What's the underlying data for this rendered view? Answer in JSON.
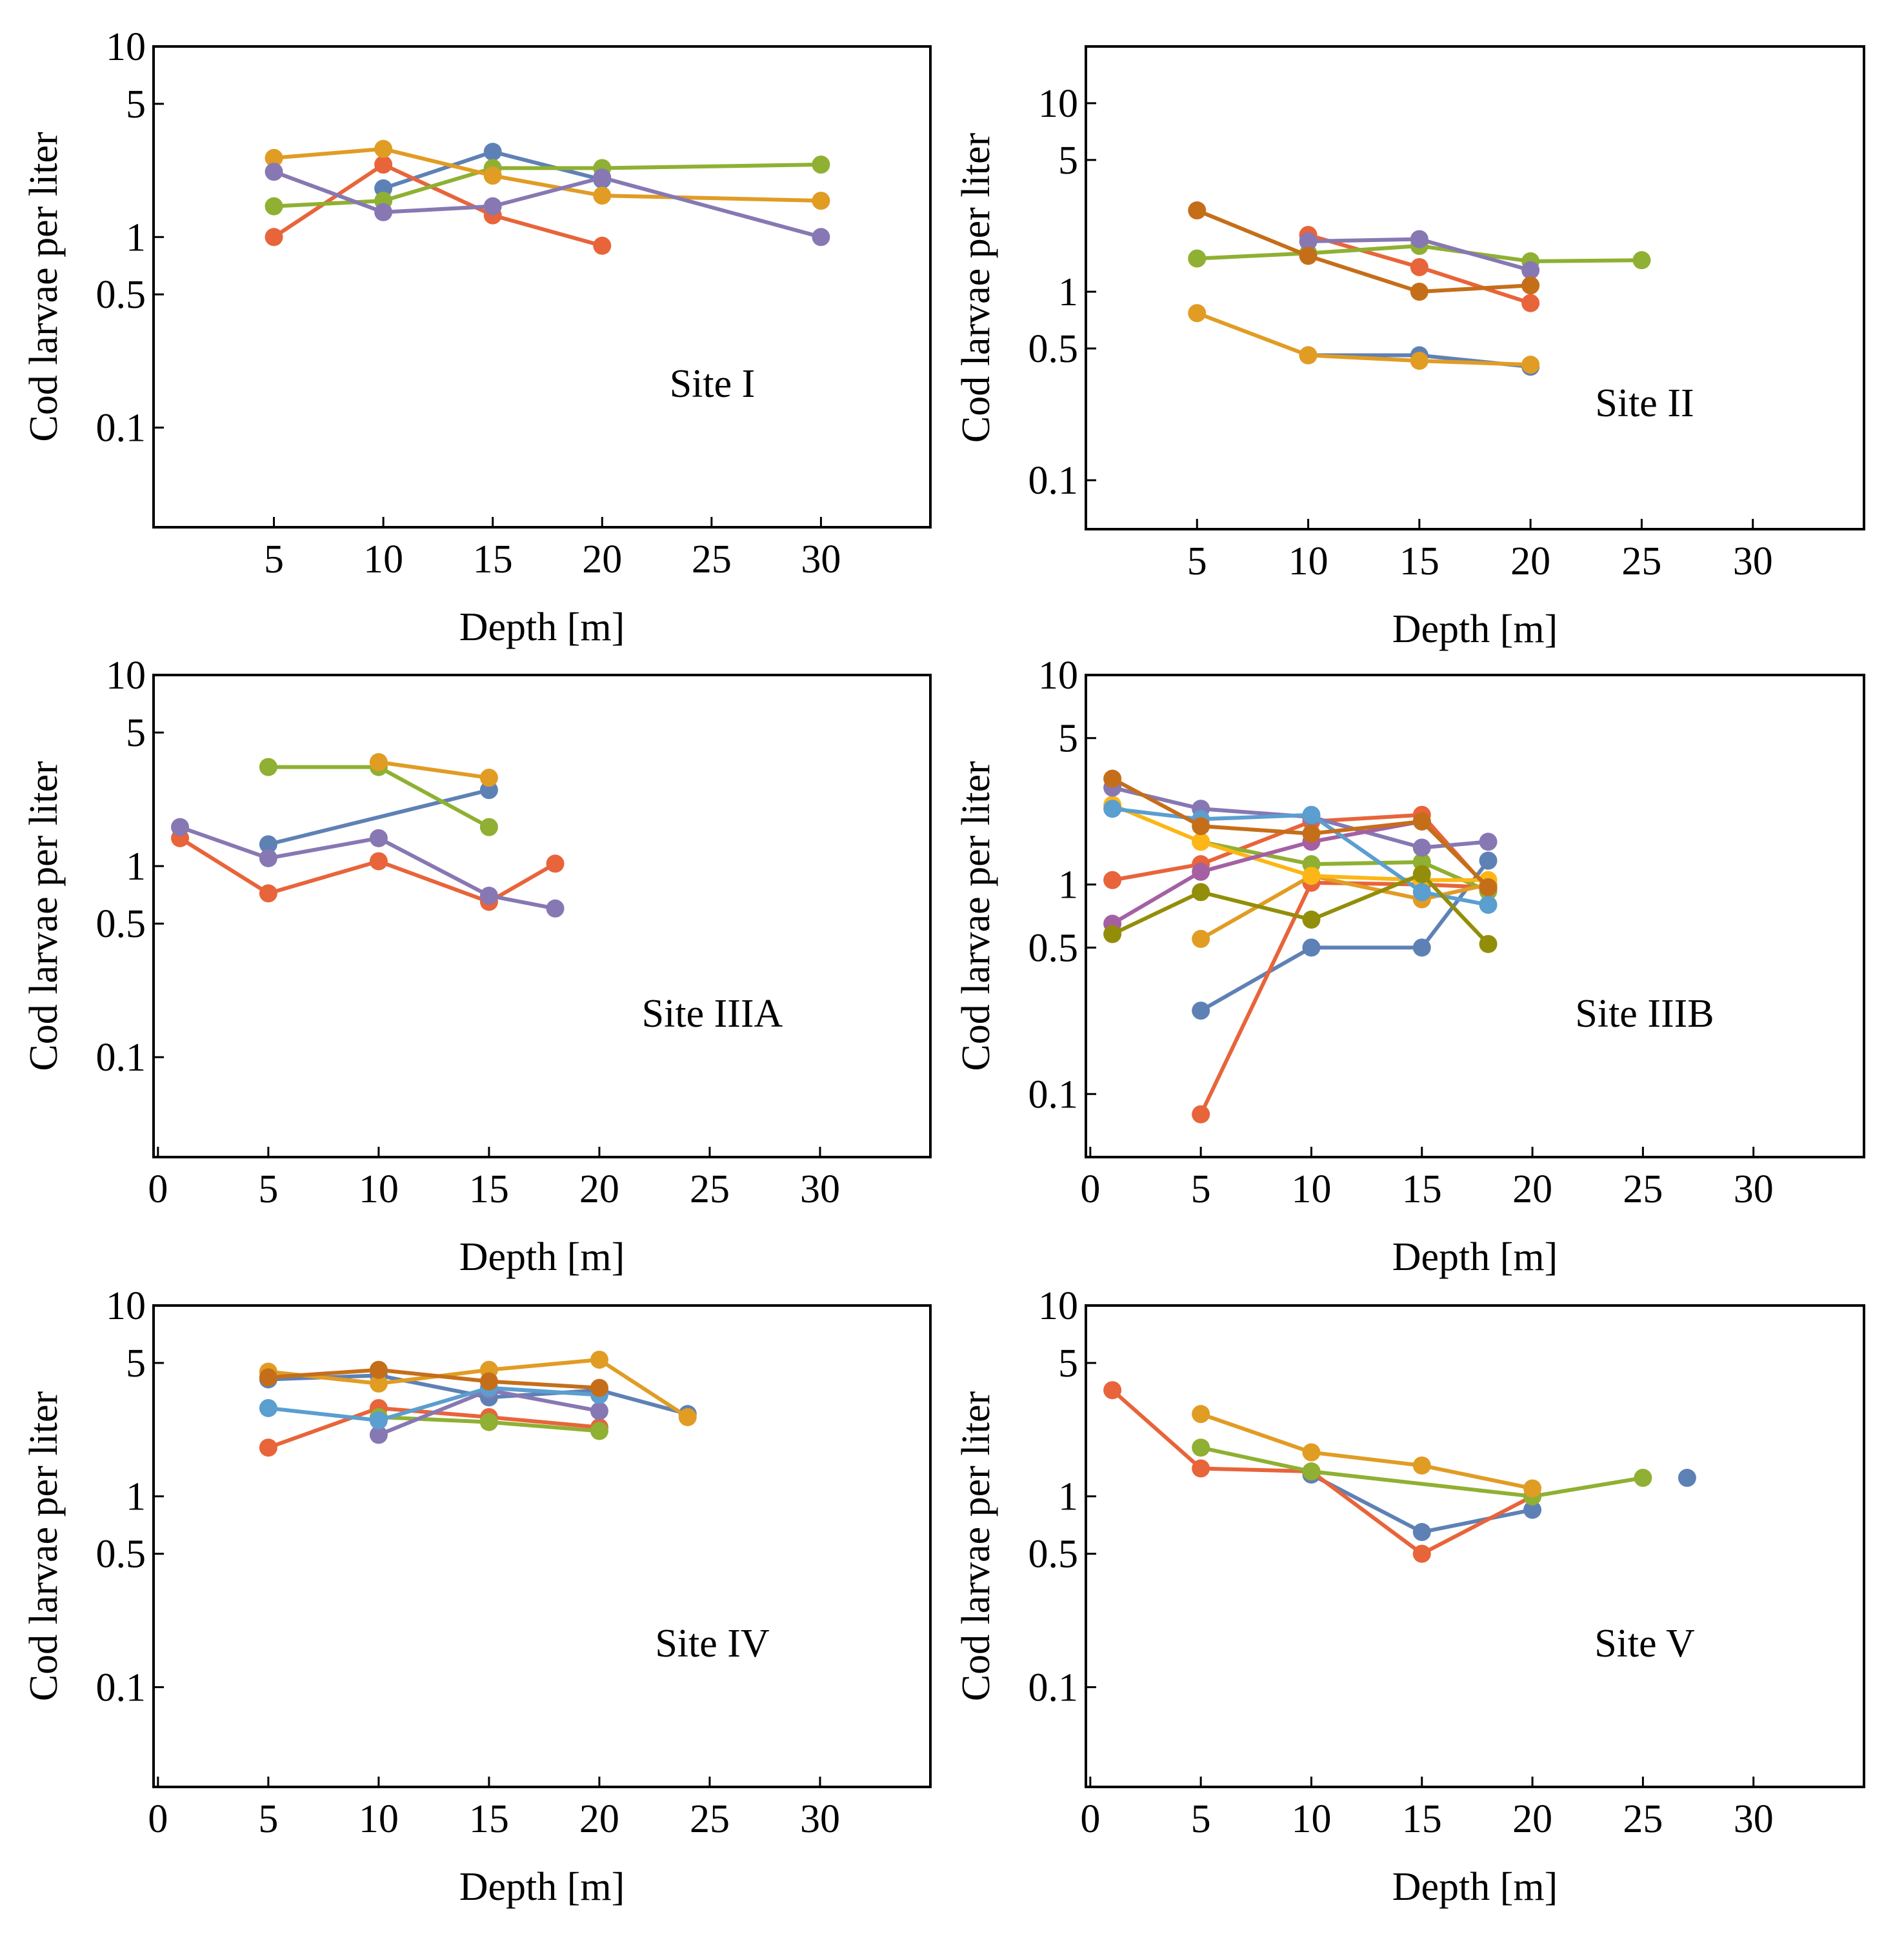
{
  "chart_data": [
    {
      "type": "line",
      "site_label": "Site I",
      "xlabel": "Depth  [m]",
      "ylabel": "Cod larvae per liter",
      "y_scale": "log",
      "ylim": [
        0.03,
        10
      ],
      "xlim": [
        -0.5,
        35
      ],
      "x_ticks": [
        5,
        10,
        15,
        20,
        25,
        30
      ],
      "y_ticks": [
        10,
        5,
        1,
        0.5,
        0.1
      ],
      "y_tick_labels": [
        "10",
        "5",
        "1",
        "0.5",
        "0.1"
      ],
      "series": [
        {
          "name": "blue",
          "color": "#5e81b5",
          "points": [
            [
              10,
              1.8
            ],
            [
              15,
              2.8
            ],
            [
              20,
              2.0
            ]
          ]
        },
        {
          "name": "orange-red",
          "color": "#e8643a",
          "points": [
            [
              5,
              1.0
            ],
            [
              10,
              2.4
            ],
            [
              15,
              1.3
            ],
            [
              20,
              0.9
            ]
          ]
        },
        {
          "name": "green",
          "color": "#8fb032",
          "points": [
            [
              5,
              1.45
            ],
            [
              10,
              1.55
            ],
            [
              15,
              2.3
            ],
            [
              20,
              2.3
            ],
            [
              30,
              2.4
            ]
          ]
        },
        {
          "name": "gold",
          "color": "#e19c24",
          "points": [
            [
              5,
              2.6
            ],
            [
              10,
              2.9
            ],
            [
              15,
              2.1
            ],
            [
              20,
              1.65
            ],
            [
              30,
              1.55
            ]
          ]
        },
        {
          "name": "purple",
          "color": "#8778b3",
          "points": [
            [
              5,
              2.2
            ],
            [
              10,
              1.35
            ],
            [
              15,
              1.45
            ],
            [
              20,
              2.05
            ],
            [
              30,
              1.0
            ]
          ]
        }
      ]
    },
    {
      "type": "line",
      "site_label": "Site II",
      "xlabel": "Depth  [m]",
      "ylabel": "Cod larvae per liter",
      "y_scale": "log",
      "ylim": [
        0.055,
        20
      ],
      "xlim": [
        0,
        35
      ],
      "x_ticks": [
        5,
        10,
        15,
        20,
        25,
        30
      ],
      "y_ticks": [
        10,
        5,
        1,
        0.5,
        0.1
      ],
      "y_tick_labels": [
        "10",
        "5",
        "1",
        "0.5",
        "0.1"
      ],
      "series": [
        {
          "name": "blue",
          "color": "#5e81b5",
          "points": [
            [
              10,
              0.46
            ],
            [
              15,
              0.46
            ],
            [
              20,
              0.4
            ]
          ]
        },
        {
          "name": "orange-red",
          "color": "#e8643a",
          "points": [
            [
              10,
              2.0
            ],
            [
              15,
              1.35
            ],
            [
              20,
              0.87
            ]
          ]
        },
        {
          "name": "green",
          "color": "#8fb032",
          "points": [
            [
              5,
              1.5
            ],
            [
              10,
              1.6
            ],
            [
              15,
              1.75
            ],
            [
              20,
              1.45
            ],
            [
              25,
              1.47
            ]
          ]
        },
        {
          "name": "gold",
          "color": "#e19c24",
          "points": [
            [
              5,
              0.77
            ],
            [
              10,
              0.46
            ],
            [
              15,
              0.43
            ],
            [
              20,
              0.41
            ]
          ]
        },
        {
          "name": "purple",
          "color": "#8778b3",
          "points": [
            [
              10,
              1.85
            ],
            [
              15,
              1.9
            ],
            [
              20,
              1.3
            ]
          ]
        },
        {
          "name": "brown",
          "color": "#c56e1a",
          "points": [
            [
              5,
              2.7
            ],
            [
              10,
              1.55
            ],
            [
              15,
              1.0
            ],
            [
              20,
              1.08
            ]
          ]
        }
      ]
    },
    {
      "type": "line",
      "site_label": "Site IIIA",
      "xlabel": "Depth  [m]",
      "ylabel": "Cod larvae per liter",
      "y_scale": "log",
      "ylim": [
        0.03,
        10
      ],
      "xlim": [
        -0.2,
        35
      ],
      "x_ticks": [
        0,
        5,
        10,
        15,
        20,
        25,
        30
      ],
      "y_ticks": [
        10,
        5,
        1,
        0.5,
        0.1
      ],
      "y_tick_labels": [
        "10",
        "5",
        "1",
        "0.5",
        "0.1"
      ],
      "series": [
        {
          "name": "blue",
          "color": "#5e81b5",
          "points": [
            [
              5,
              1.3
            ],
            [
              15,
              2.5
            ]
          ]
        },
        {
          "name": "orange-red",
          "color": "#e8643a",
          "points": [
            [
              1,
              1.4
            ],
            [
              5,
              0.72
            ],
            [
              10,
              1.06
            ],
            [
              15,
              0.65
            ],
            [
              18,
              1.03
            ]
          ]
        },
        {
          "name": "green",
          "color": "#8fb032",
          "points": [
            [
              5,
              3.3
            ],
            [
              10,
              3.3
            ],
            [
              15,
              1.6
            ]
          ]
        },
        {
          "name": "gold",
          "color": "#e19c24",
          "points": [
            [
              10,
              3.5
            ],
            [
              15,
              2.9
            ]
          ]
        },
        {
          "name": "purple",
          "color": "#8778b3",
          "points": [
            [
              1,
              1.6
            ],
            [
              5,
              1.1
            ],
            [
              10,
              1.4
            ],
            [
              15,
              0.7
            ],
            [
              18,
              0.6
            ]
          ]
        }
      ]
    },
    {
      "type": "line",
      "site_label": "Site IIIB",
      "xlabel": "Depth  [m]",
      "ylabel": "Cod larvae per liter",
      "y_scale": "log",
      "ylim": [
        0.05,
        10
      ],
      "xlim": [
        -0.2,
        35
      ],
      "x_ticks": [
        0,
        5,
        10,
        15,
        20,
        25,
        30
      ],
      "y_ticks": [
        10,
        5,
        1,
        0.5,
        0.1
      ],
      "y_tick_labels": [
        "10",
        "5",
        "1",
        "0.5",
        "0.1"
      ],
      "series": [
        {
          "name": "blue",
          "color": "#5e81b5",
          "points": [
            [
              5,
              0.25
            ],
            [
              10,
              0.5
            ],
            [
              15,
              0.5
            ],
            [
              18,
              1.3
            ]
          ]
        },
        {
          "name": "orange-red",
          "color": "#e8643a",
          "points": [
            [
              5,
              0.08
            ],
            [
              10,
              1.02
            ],
            [
              15,
              1.0
            ],
            [
              18,
              0.97
            ]
          ]
        },
        {
          "name": "red-upper",
          "color": "#e8643a",
          "points": [
            [
              1,
              1.05
            ],
            [
              5,
              1.25
            ],
            [
              10,
              2.0
            ],
            [
              15,
              2.15
            ],
            [
              18,
              0.95
            ]
          ]
        },
        {
          "name": "green",
          "color": "#8fb032",
          "points": [
            [
              5,
              1.6
            ],
            [
              10,
              1.25
            ],
            [
              15,
              1.28
            ],
            [
              18,
              0.93
            ]
          ]
        },
        {
          "name": "gold",
          "color": "#e19c24",
          "points": [
            [
              5,
              0.55
            ],
            [
              10,
              1.1
            ],
            [
              15,
              0.85
            ],
            [
              18,
              1.0
            ]
          ]
        },
        {
          "name": "yellow",
          "color": "#fcb716",
          "points": [
            [
              1,
              2.4
            ],
            [
              5,
              1.6
            ],
            [
              10,
              1.1
            ],
            [
              15,
              1.05
            ],
            [
              18,
              1.05
            ]
          ]
        },
        {
          "name": "purple",
          "color": "#8778b3",
          "points": [
            [
              1,
              2.9
            ],
            [
              5,
              2.3
            ],
            [
              10,
              2.1
            ],
            [
              15,
              1.5
            ],
            [
              18,
              1.6
            ]
          ]
        },
        {
          "name": "violet",
          "color": "#a560a3",
          "points": [
            [
              1,
              0.65
            ],
            [
              5,
              1.15
            ],
            [
              10,
              1.6
            ],
            [
              15,
              2.0
            ]
          ]
        },
        {
          "name": "sky",
          "color": "#5b9ed0",
          "points": [
            [
              1,
              2.3
            ],
            [
              5,
              2.05
            ],
            [
              10,
              2.15
            ],
            [
              15,
              0.92
            ],
            [
              18,
              0.8
            ]
          ]
        },
        {
          "name": "olive",
          "color": "#928e09",
          "points": [
            [
              1,
              0.58
            ],
            [
              5,
              0.92
            ],
            [
              10,
              0.68
            ],
            [
              15,
              1.12
            ],
            [
              18,
              0.52
            ]
          ]
        },
        {
          "name": "brown",
          "color": "#c56e1a",
          "points": [
            [
              1,
              3.2
            ],
            [
              5,
              1.9
            ],
            [
              10,
              1.75
            ],
            [
              15,
              2.0
            ],
            [
              18,
              0.97
            ]
          ]
        }
      ]
    },
    {
      "type": "line",
      "site_label": "Site IV",
      "xlabel": "Depth  [m]",
      "ylabel": "Cod larvae per liter",
      "y_scale": "log",
      "ylim": [
        0.03,
        10
      ],
      "xlim": [
        -0.2,
        35
      ],
      "x_ticks": [
        0,
        5,
        10,
        15,
        20,
        25,
        30
      ],
      "y_ticks": [
        10,
        5,
        1,
        0.5,
        0.1
      ],
      "y_tick_labels": [
        "10",
        "5",
        "1",
        "0.5",
        "0.1"
      ],
      "series": [
        {
          "name": "blue",
          "color": "#5e81b5",
          "points": [
            [
              5,
              4.1
            ],
            [
              10,
              4.3
            ],
            [
              15,
              3.3
            ],
            [
              20,
              3.6
            ],
            [
              24,
              2.7
            ]
          ]
        },
        {
          "name": "orange-red",
          "color": "#e8643a",
          "points": [
            [
              5,
              1.8
            ],
            [
              10,
              2.9
            ],
            [
              15,
              2.6
            ],
            [
              20,
              2.3
            ]
          ]
        },
        {
          "name": "green",
          "color": "#8fb032",
          "points": [
            [
              10,
              2.6
            ],
            [
              15,
              2.45
            ],
            [
              20,
              2.2
            ]
          ]
        },
        {
          "name": "gold",
          "color": "#e19c24",
          "points": [
            [
              5,
              4.5
            ],
            [
              10,
              3.9
            ],
            [
              15,
              4.6
            ],
            [
              20,
              5.2
            ],
            [
              24,
              2.6
            ]
          ]
        },
        {
          "name": "purple",
          "color": "#8778b3",
          "points": [
            [
              10,
              2.1
            ],
            [
              15,
              3.6
            ],
            [
              20,
              2.8
            ]
          ]
        },
        {
          "name": "sky",
          "color": "#5b9ed0",
          "points": [
            [
              5,
              2.9
            ],
            [
              10,
              2.5
            ],
            [
              15,
              3.7
            ],
            [
              20,
              3.4
            ]
          ]
        },
        {
          "name": "brown",
          "color": "#c56e1a",
          "points": [
            [
              5,
              4.2
            ],
            [
              10,
              4.6
            ],
            [
              15,
              4.0
            ],
            [
              20,
              3.7
            ]
          ]
        }
      ]
    },
    {
      "type": "line",
      "site_label": "Site V",
      "xlabel": "Depth  [m]",
      "ylabel": "Cod larvae per liter",
      "y_scale": "log",
      "ylim": [
        0.03,
        10
      ],
      "xlim": [
        -0.2,
        35
      ],
      "x_ticks": [
        0,
        5,
        10,
        15,
        20,
        25,
        30
      ],
      "y_ticks": [
        10,
        5,
        1,
        0.5,
        0.1
      ],
      "y_tick_labels": [
        "10",
        "5",
        "1",
        "0.5",
        "0.1"
      ],
      "series": [
        {
          "name": "blue",
          "color": "#5e81b5",
          "points": [
            [
              10,
              1.3
            ],
            [
              15,
              0.65
            ],
            [
              20,
              0.85
            ]
          ]
        },
        {
          "name": "blue-single",
          "color": "#5e81b5",
          "points": [
            [
              27,
              1.25
            ]
          ]
        },
        {
          "name": "orange-red",
          "color": "#e8643a",
          "points": [
            [
              1,
              3.6
            ],
            [
              5,
              1.4
            ],
            [
              10,
              1.35
            ],
            [
              15,
              0.5
            ],
            [
              20,
              1.0
            ]
          ]
        },
        {
          "name": "green",
          "color": "#8fb032",
          "points": [
            [
              5,
              1.8
            ],
            [
              10,
              1.35
            ],
            [
              20,
              1.0
            ],
            [
              25,
              1.25
            ]
          ]
        },
        {
          "name": "gold",
          "color": "#e19c24",
          "points": [
            [
              5,
              2.7
            ],
            [
              10,
              1.7
            ],
            [
              15,
              1.45
            ],
            [
              20,
              1.1
            ]
          ]
        }
      ]
    }
  ]
}
